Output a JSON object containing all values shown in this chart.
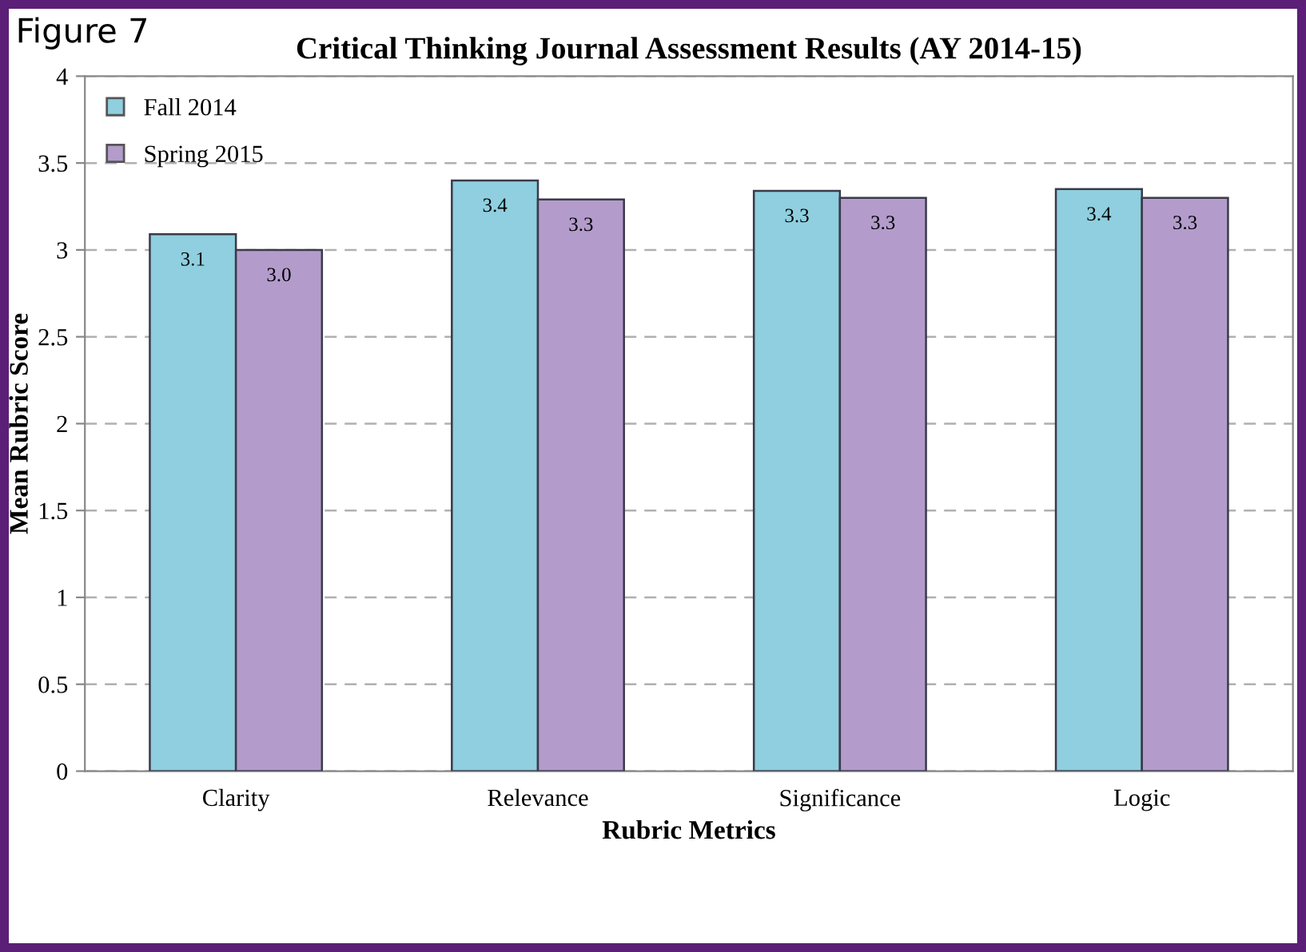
{
  "chart_data": {
    "type": "bar",
    "title": "Critical Thinking Journal Assessment Results (AY 2014-15)",
    "annotations": [
      "Figure 7"
    ],
    "xlabel": "Rubric Metrics",
    "ylabel": "Mean Rubric Score",
    "categories": [
      "Clarity",
      "Relevance",
      "Significance",
      "Logic"
    ],
    "series": [
      {
        "name": "Fall 2014",
        "color": "#8fcfdf",
        "values": [
          3.09,
          3.4,
          3.34,
          3.35
        ],
        "value_labels": [
          "3.1",
          "3.4",
          "3.3",
          "3.4"
        ]
      },
      {
        "name": "Spring 2015",
        "color": "#b39ccb",
        "values": [
          3.0,
          3.29,
          3.3,
          3.3
        ],
        "value_labels": [
          "3.0",
          "3.3",
          "3.3",
          "3.3"
        ]
      }
    ],
    "ylim": [
      0,
      4
    ],
    "yticks": [
      0,
      0.5,
      1,
      1.5,
      2,
      2.5,
      3,
      3.5,
      4
    ],
    "grid": "y",
    "legend": "top left"
  }
}
